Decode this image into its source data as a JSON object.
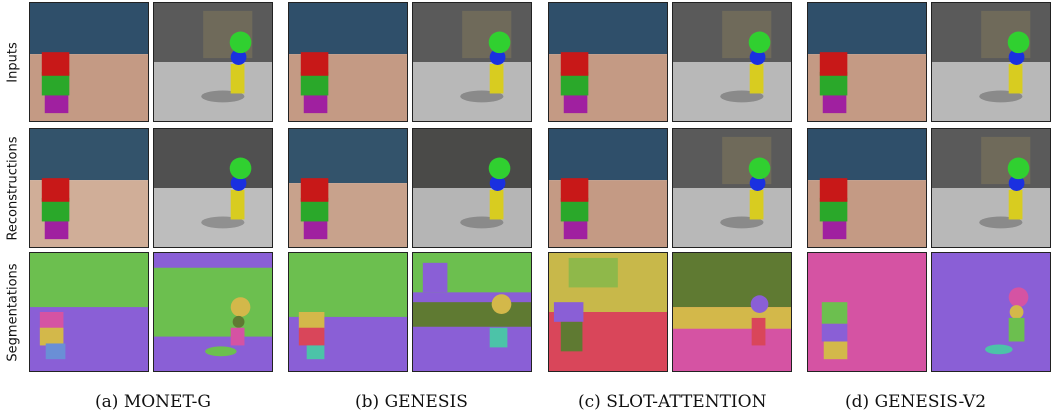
{
  "row_labels": [
    "Inputs",
    "Reconstructions",
    "Segmentations"
  ],
  "captions": [
    {
      "prefix": "(a)",
      "method": "MONET-G"
    },
    {
      "prefix": "(b)",
      "method": "GENESIS"
    },
    {
      "prefix": "(c)",
      "method": "SLOT-ATTENTION"
    },
    {
      "prefix": "(d)",
      "method": "GENESIS-V2"
    }
  ],
  "colors": {
    "sky": "#2f4f6a",
    "floor_sand": "#c49a84",
    "floor_grey": "#b8b8b8",
    "seg_green": "#6cbf4f",
    "seg_purple": "#8a5fd6",
    "seg_pink": "#d553a3",
    "seg_red": "#d9465a",
    "seg_olive": "#5f7a32",
    "seg_yellow": "#d3b84a",
    "seg_teal": "#4cc3a8"
  }
}
